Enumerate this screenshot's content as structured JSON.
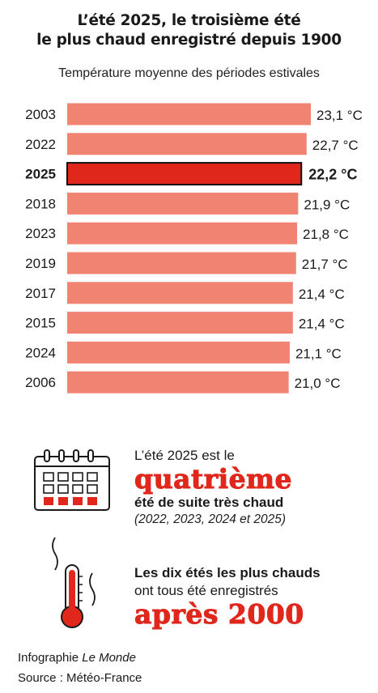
{
  "title": {
    "line1": "L’été 2025, le troisième été",
    "line2": "le plus chaud enregistré depuis 1900"
  },
  "subtitle": "Température moyenne des périodes estivales",
  "chart_data": {
    "type": "bar",
    "orientation": "horizontal",
    "categories": [
      "2003",
      "2022",
      "2025",
      "2018",
      "2023",
      "2019",
      "2017",
      "2015",
      "2024",
      "2006"
    ],
    "values": [
      23.1,
      22.7,
      22.2,
      21.9,
      21.8,
      21.7,
      21.4,
      21.4,
      21.1,
      21.0
    ],
    "value_labels": [
      "23,1 °C",
      "22,7 °C",
      "22,2 °C",
      "21,9 °C",
      "21,8 °C",
      "21,7 °C",
      "21,4 °C",
      "21,4 °C",
      "21,1 °C",
      "21,0 °C"
    ],
    "highlight": "2025",
    "colors": {
      "bar": "#f08372",
      "highlight": "#e1271c",
      "highlight_outline": "#111111"
    },
    "grid": false,
    "legend": "none"
  },
  "facts": [
    {
      "icon": "calendar-icon",
      "lead": "L’été 2025 est le",
      "emphasis": "quatrième",
      "bold": "été de suite très chaud",
      "note": "(2022, 2023, 2024 et 2025)"
    },
    {
      "icon": "thermometer-icon",
      "bold": "Les dix étés les plus chauds",
      "lead": "ont tous été enregistrés",
      "emphasis": "après 2000"
    }
  ],
  "credits": {
    "infographie_label": "Infographie",
    "outlet": "Le Monde",
    "source": "Source : Météo-France"
  },
  "colors": {
    "accent": "#e1271c",
    "bar": "#f08372",
    "text": "#1a1a1a"
  }
}
